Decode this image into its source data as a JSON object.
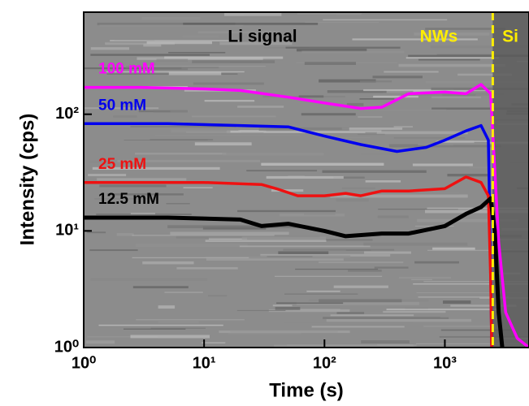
{
  "chart_data": {
    "type": "line",
    "xlabel": "Time (s)",
    "ylabel": "Intensity (cps)",
    "xlog": true,
    "ylog": true,
    "xlim": [
      1,
      5000
    ],
    "ylim": [
      1,
      750
    ],
    "xticks": [
      {
        "value": 1,
        "label": "10⁰"
      },
      {
        "value": 10,
        "label": "10¹"
      },
      {
        "value": 100,
        "label": "10²"
      },
      {
        "value": 1000,
        "label": "10³"
      }
    ],
    "yticks": [
      {
        "value": 1,
        "label": "10⁰"
      },
      {
        "value": 10,
        "label": "10¹"
      },
      {
        "value": 100,
        "label": "10²"
      }
    ],
    "annotations": [
      "Li signal",
      "NWs",
      "Si"
    ],
    "boundary_x": 2500,
    "boundary_color": "#ffee00",
    "series": [
      {
        "name": "100 mM",
        "color": "#ff00ff",
        "x": [
          1,
          3,
          10,
          20,
          50,
          100,
          200,
          300,
          500,
          1000,
          1500,
          2000,
          2400,
          2800,
          3200,
          4000,
          5000
        ],
        "values": [
          170,
          170,
          165,
          160,
          140,
          125,
          112,
          115,
          150,
          155,
          150,
          180,
          150,
          8,
          2,
          1.2,
          1
        ]
      },
      {
        "name": "50 mM",
        "color": "#0000ee",
        "x": [
          1,
          5,
          20,
          50,
          100,
          200,
          400,
          700,
          1000,
          1500,
          2000,
          2300,
          2400,
          2450
        ],
        "values": [
          83,
          83,
          80,
          78,
          65,
          55,
          48,
          52,
          60,
          72,
          80,
          60,
          5,
          1
        ]
      },
      {
        "name": "25 mM",
        "color": "#ee1111",
        "x": [
          1,
          10,
          30,
          40,
          60,
          100,
          150,
          200,
          300,
          500,
          1000,
          1500,
          2000,
          2300,
          2400,
          2450
        ],
        "values": [
          26,
          26,
          25,
          23,
          20,
          20,
          21,
          20,
          22,
          22,
          23,
          29,
          26,
          20,
          4,
          1
        ]
      },
      {
        "name": "12.5 mM",
        "color": "#000000",
        "x": [
          1,
          5,
          20,
          30,
          50,
          100,
          150,
          300,
          500,
          1000,
          1500,
          2000,
          2400,
          2600,
          2800,
          3000
        ],
        "values": [
          13,
          13,
          12.5,
          11,
          11.5,
          10,
          9,
          9.5,
          9.5,
          11,
          14,
          16,
          19,
          10,
          2,
          1
        ]
      }
    ]
  }
}
